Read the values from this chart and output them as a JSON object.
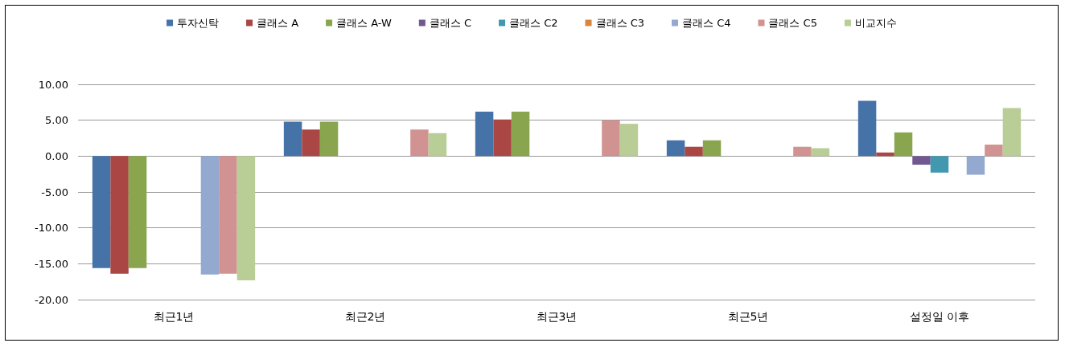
{
  "chart_data": {
    "type": "bar",
    "categories": [
      "최근1년",
      "최근2년",
      "최근3년",
      "최근5년",
      "설정일 이후"
    ],
    "series": [
      {
        "name": "투자신탁",
        "color": "#4572a7",
        "values": [
          -15.6,
          4.8,
          6.2,
          2.2,
          7.7
        ]
      },
      {
        "name": "클래스 A",
        "color": "#aa4643",
        "values": [
          -16.4,
          3.7,
          5.1,
          1.3,
          0.5
        ]
      },
      {
        "name": "클래스 A-W",
        "color": "#89a54e",
        "values": [
          -15.6,
          4.8,
          6.2,
          2.2,
          3.3
        ]
      },
      {
        "name": "클래스 C",
        "color": "#71588f",
        "values": [
          null,
          null,
          null,
          null,
          -1.2
        ]
      },
      {
        "name": "클래스 C2",
        "color": "#4198af",
        "values": [
          null,
          null,
          null,
          null,
          -2.3
        ]
      },
      {
        "name": "클래스 C3",
        "color": "#db843d",
        "values": [
          null,
          null,
          null,
          null,
          null
        ]
      },
      {
        "name": "클래스 C4",
        "color": "#93a9cf",
        "values": [
          -16.5,
          null,
          null,
          null,
          -2.6
        ]
      },
      {
        "name": "클래스 C5",
        "color": "#d19392",
        "values": [
          -16.4,
          3.7,
          5.0,
          1.3,
          1.6
        ]
      },
      {
        "name": "비교지수",
        "color": "#b9cd96",
        "values": [
          -17.3,
          3.2,
          4.5,
          1.1,
          6.7
        ]
      }
    ],
    "ylim": [
      -20,
      10
    ],
    "yticks": [
      {
        "value": -20,
        "label": "-20.00"
      },
      {
        "value": -15,
        "label": "-15.00"
      },
      {
        "value": -10,
        "label": "-10.00"
      },
      {
        "value": -5,
        "label": "-5.00"
      },
      {
        "value": 0,
        "label": "0.00"
      },
      {
        "value": 5,
        "label": "5.00"
      },
      {
        "value": 10,
        "label": "10.00"
      }
    ],
    "grid": "y",
    "legend": "top"
  }
}
